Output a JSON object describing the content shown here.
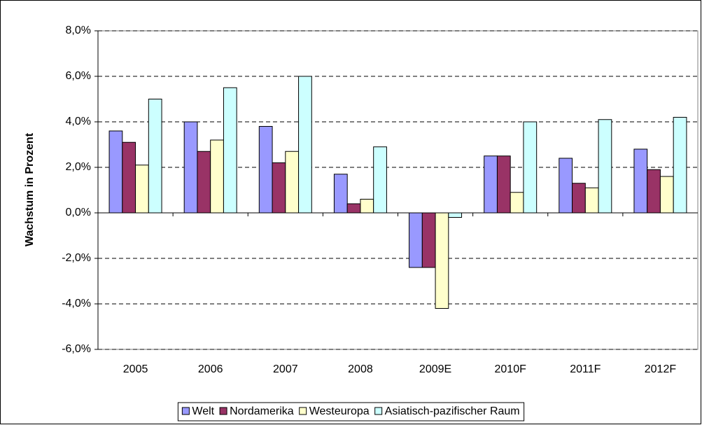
{
  "chart_data": {
    "type": "bar",
    "y_label": "Wachstum in Prozent",
    "categories": [
      "2005",
      "2006",
      "2007",
      "2008",
      "2009E",
      "2010F",
      "2011F",
      "2012F"
    ],
    "series": [
      {
        "name": "Welt",
        "color": "#9999ff",
        "values": [
          3.6,
          4.0,
          3.8,
          1.7,
          -2.4,
          2.5,
          2.4,
          2.8
        ]
      },
      {
        "name": "Nordamerika",
        "color": "#993366",
        "values": [
          3.1,
          2.7,
          2.2,
          0.4,
          -2.4,
          2.5,
          1.3,
          1.9
        ]
      },
      {
        "name": "Westeuropa",
        "color": "#ffffcc",
        "values": [
          2.1,
          3.2,
          2.7,
          0.6,
          -4.2,
          0.9,
          1.1,
          1.6
        ]
      },
      {
        "name": "Asiatisch-pazifischer Raum",
        "color": "#ccffff",
        "values": [
          5.0,
          5.5,
          6.0,
          2.9,
          -0.2,
          4.0,
          4.1,
          4.2
        ]
      }
    ],
    "ylim": [
      -6,
      8
    ],
    "yticks": [
      {
        "value": -6,
        "label": "-6,0%"
      },
      {
        "value": -4,
        "label": "-4,0%"
      },
      {
        "value": -2,
        "label": "-2,0%"
      },
      {
        "value": 0,
        "label": "0,0%"
      },
      {
        "value": 2,
        "label": "2,0%"
      },
      {
        "value": 4,
        "label": "4,0%"
      },
      {
        "value": 6,
        "label": "6,0%"
      },
      {
        "value": 8,
        "label": "8,0%"
      }
    ],
    "grid": true,
    "legend": "bottom"
  }
}
